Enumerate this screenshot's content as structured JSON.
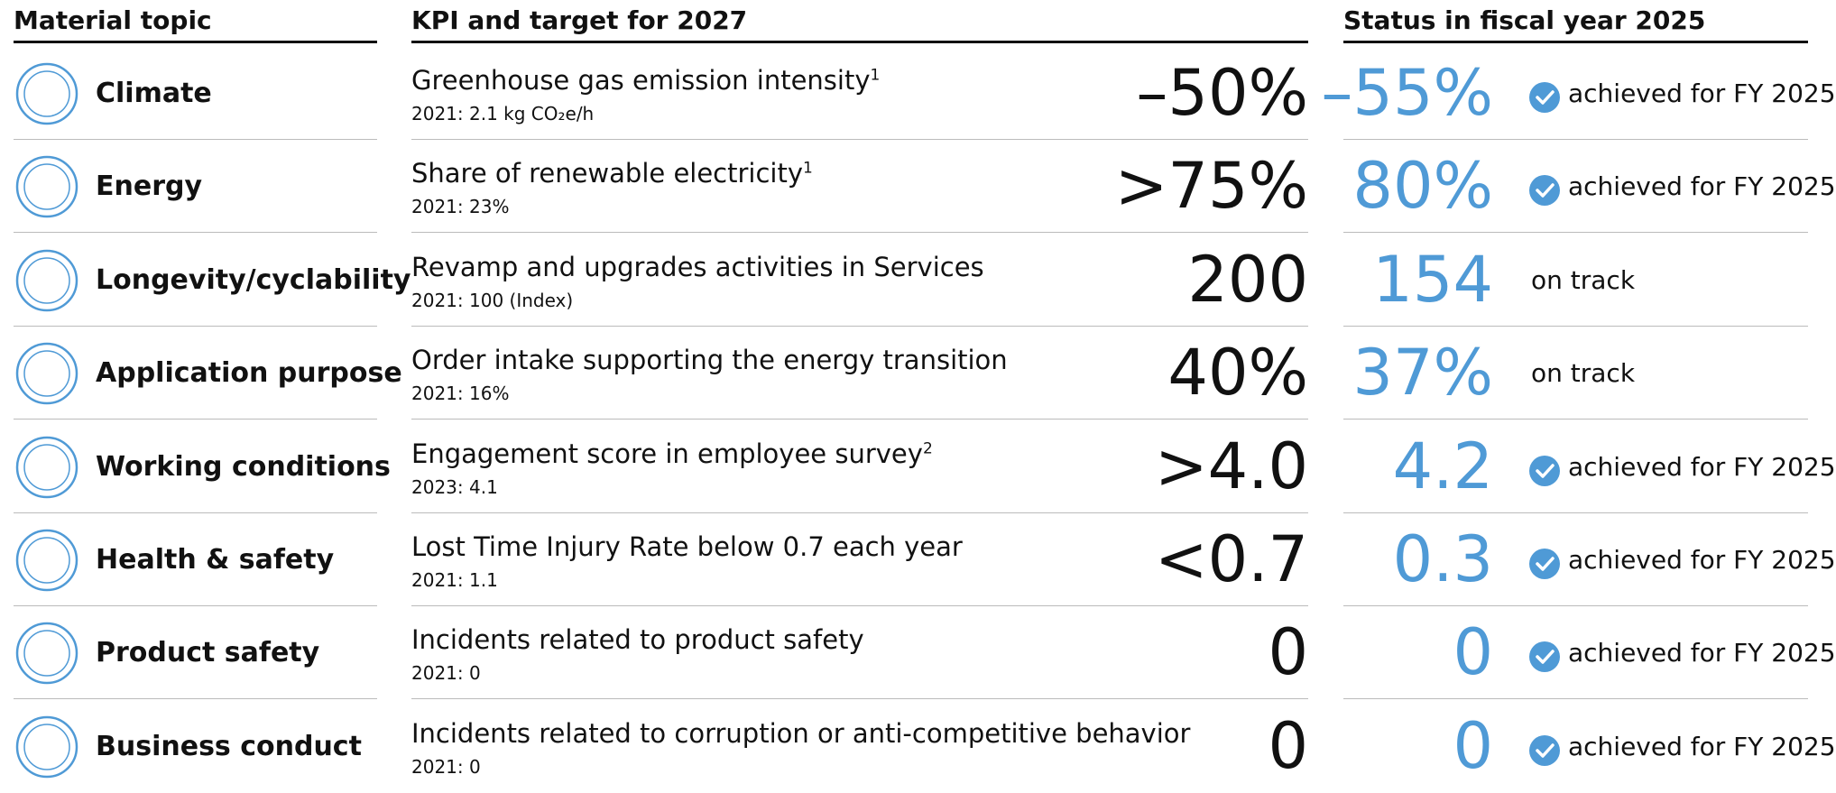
{
  "header": {
    "topic": "Material topic",
    "kpi": "KPI and target for 2027",
    "status": "Status in fiscal year 2025"
  },
  "rows": [
    {
      "topic": "Climate",
      "kpi": "Greenhouse gas emission intensity",
      "sup": "1",
      "baseline": "2021: 2.1 kg CO₂e/h",
      "target": "–50%",
      "value": "–55%",
      "status": "achieved for FY 2025",
      "check": true
    },
    {
      "topic": "Energy",
      "kpi": "Share of renewable electricity",
      "sup": "1",
      "baseline": "2021: 23%",
      "target": ">75%",
      "value": "80%",
      "status": "achieved for FY 2025",
      "check": true
    },
    {
      "topic": "Longevity/cyclability",
      "kpi": "Revamp and upgrades activities in Services",
      "baseline": "2021: 100 (Index)",
      "target": "200",
      "value": "154",
      "status": "on track",
      "check": false
    },
    {
      "topic": "Application purpose",
      "kpi": "Order intake supporting the energy transition",
      "baseline": "2021: 16%",
      "target": "40%",
      "value": "37%",
      "status": "on track",
      "check": false
    },
    {
      "topic": "Working conditions",
      "kpi": "Engagement score in employee survey",
      "sup": "2",
      "baseline": "2023: 4.1",
      "target": ">4.0",
      "value": "4.2",
      "status": "achieved for FY 2025",
      "check": true
    },
    {
      "topic": "Health & safety",
      "kpi": "Lost Time Injury Rate below 0.7 each year",
      "baseline": "2021: 1.1",
      "target": "<0.7",
      "value": "0.3",
      "status": "achieved for FY 2025",
      "check": true
    },
    {
      "topic": "Product safety",
      "kpi": "Incidents related to product safety",
      "baseline": "2021: 0",
      "target": "0",
      "value": "0",
      "status": "achieved for FY 2025",
      "check": true
    },
    {
      "topic": "Business conduct",
      "kpi": "Incidents related to corruption or anti-competitive behavior",
      "baseline": "2021: 0",
      "target": "0",
      "value": "0",
      "status": "achieved for FY 2025",
      "check": true
    }
  ]
}
